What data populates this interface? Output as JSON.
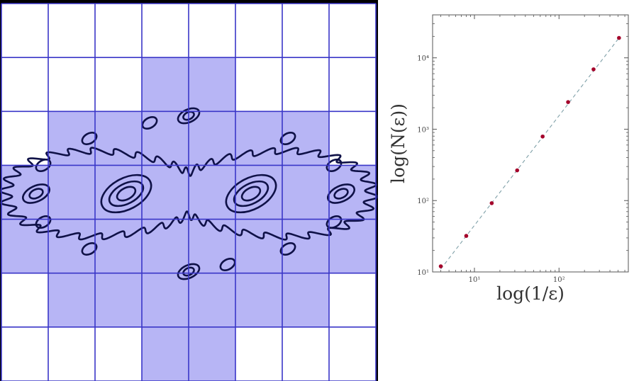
{
  "colors": {
    "grid_line": "#3a36c8",
    "covered_fill": "#b7b5f5",
    "fractal": "#0f1147",
    "point": "#a4002a",
    "fit_line": "#7fa0a8",
    "frame": "#000000"
  },
  "box_grid": {
    "cols": 8,
    "rows": 7,
    "covered": [
      [
        0,
        0,
        0,
        0,
        0,
        0,
        0,
        0
      ],
      [
        0,
        0,
        0,
        1,
        1,
        0,
        0,
        0
      ],
      [
        0,
        1,
        1,
        1,
        1,
        1,
        1,
        0
      ],
      [
        1,
        1,
        1,
        1,
        1,
        1,
        1,
        1
      ],
      [
        1,
        1,
        1,
        1,
        1,
        1,
        1,
        1
      ],
      [
        0,
        1,
        1,
        1,
        1,
        1,
        1,
        0
      ],
      [
        0,
        0,
        0,
        1,
        1,
        0,
        0,
        0
      ]
    ]
  },
  "chart_data": {
    "type": "scatter",
    "title": "",
    "xlabel": "log(1/ε)",
    "ylabel": "log(N(ε))",
    "xscale": "log",
    "yscale": "log",
    "xlim": [
      3.2,
      660
    ],
    "ylim": [
      10,
      40000
    ],
    "xticks": [
      {
        "value": 10,
        "label": "10¹"
      },
      {
        "value": 100,
        "label": "10²"
      }
    ],
    "yticks": [
      {
        "value": 10,
        "label": "10¹"
      },
      {
        "value": 100,
        "label": "10²"
      },
      {
        "value": 1000,
        "label": "10³"
      },
      {
        "value": 10000,
        "label": "10⁴"
      }
    ],
    "points": [
      {
        "x": 4,
        "y": 12
      },
      {
        "x": 8,
        "y": 32
      },
      {
        "x": 16,
        "y": 92
      },
      {
        "x": 32,
        "y": 265
      },
      {
        "x": 64,
        "y": 790
      },
      {
        "x": 128,
        "y": 2400
      },
      {
        "x": 256,
        "y": 6900
      },
      {
        "x": 512,
        "y": 19000
      }
    ],
    "fit_line": {
      "x": [
        4,
        512
      ],
      "y": [
        11,
        19000
      ],
      "style": "dashed"
    },
    "grid": false
  }
}
